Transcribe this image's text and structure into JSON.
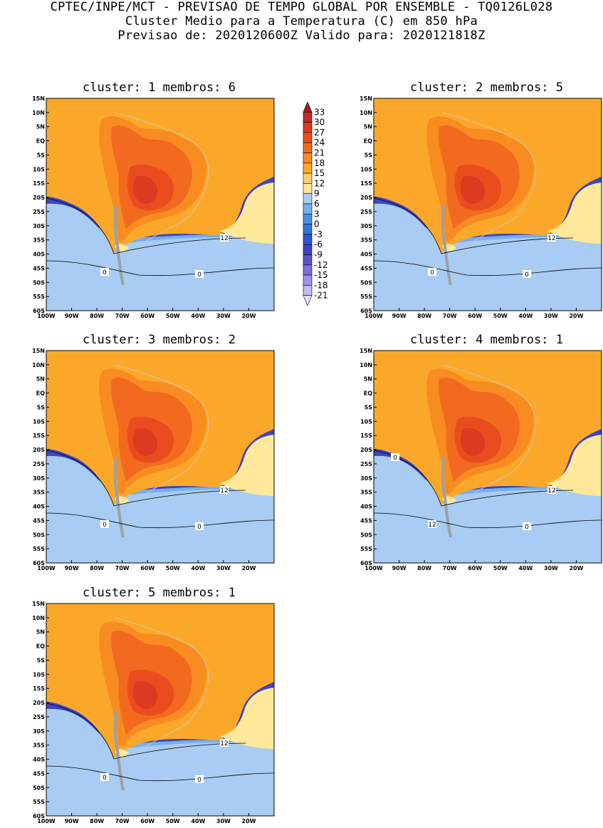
{
  "header": {
    "line1": "CPTEC/INPE/MCT - PREVISAO DE TEMPO GLOBAL POR ENSEMBLE - TQ0126L028",
    "line2": "Cluster Medio para a Temperatura (C) em 850 hPa",
    "line3": "Previsao de: 2020120600Z   Valido para: 2020121818Z"
  },
  "lat_labels": [
    "15N",
    "10N",
    "5N",
    "EQ",
    "5S",
    "10S",
    "15S",
    "20S",
    "25S",
    "30S",
    "35S",
    "40S",
    "45S",
    "50S",
    "55S",
    "60S"
  ],
  "lon_labels": [
    "100W",
    "90W",
    "80W",
    "70W",
    "60W",
    "50W",
    "40W",
    "30W",
    "20W"
  ],
  "panels": [
    {
      "title": "cluster: 1   membros: 6",
      "contour_labels": [
        "12",
        "0",
        "0"
      ]
    },
    {
      "title": "cluster: 2   membros: 5",
      "contour_labels": [
        "12",
        "0",
        "0"
      ]
    },
    {
      "title": "cluster: 3   membros: 2",
      "contour_labels": [
        "12",
        "0",
        "0"
      ]
    },
    {
      "title": "cluster: 4   membros: 1",
      "contour_labels": [
        "12",
        "12",
        "0",
        "0"
      ]
    },
    {
      "title": "cluster: 5   membros: 1",
      "contour_labels": [
        "12",
        "0",
        "0"
      ]
    }
  ],
  "colorbar": {
    "labels": [
      "33",
      "30",
      "27",
      "24",
      "21",
      "18",
      "15",
      "12",
      "9",
      "6",
      "3",
      "0",
      "-3",
      "-6",
      "-9",
      "-12",
      "-15",
      "-18",
      "-21"
    ],
    "colors": [
      "#ae1a1a",
      "#c62a2a",
      "#dd3a22",
      "#ea4d1d",
      "#f26a1f",
      "#f88c21",
      "#fba82a",
      "#fed06b",
      "#fee89a",
      "#a8ccf3",
      "#77aeee",
      "#4f8fe6",
      "#3573dc",
      "#2c57cf",
      "#3d45c3",
      "#5d52cc",
      "#7f6fd8",
      "#a191e3",
      "#c9b8ef",
      "#e8ddf7"
    ]
  }
}
